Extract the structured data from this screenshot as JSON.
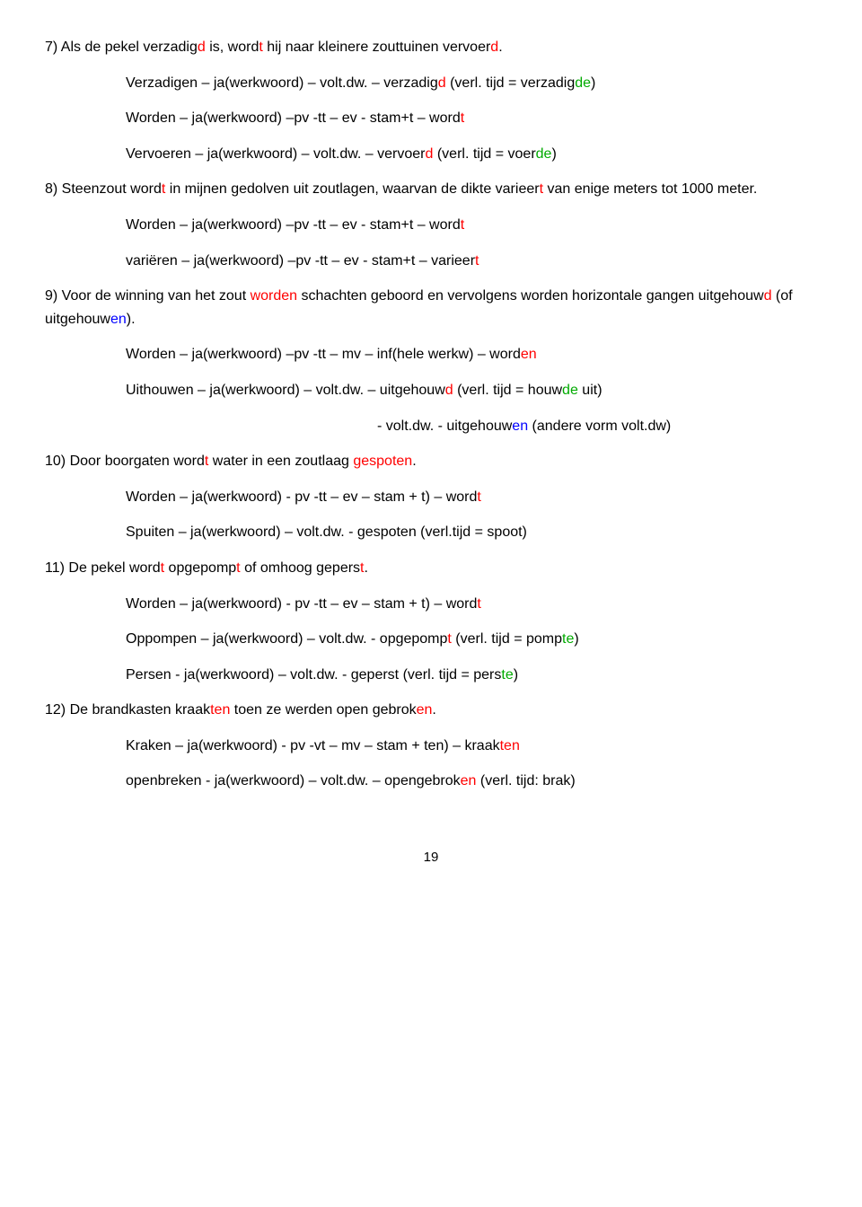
{
  "colors": {
    "red": "#ff0000",
    "green": "#00aa00",
    "blue": "#0000ff",
    "black": "#000000",
    "background": "#ffffff"
  },
  "typography": {
    "font_family": "Comic Sans MS",
    "font_size_pt": 12,
    "line_height": 1.6
  },
  "page_number": "19",
  "items": {
    "q7": {
      "sentence": [
        {
          "t": "7) Als de pekel verzadig",
          "c": "k"
        },
        {
          "t": "d",
          "c": "r"
        },
        {
          "t": " is, word",
          "c": "k"
        },
        {
          "t": "t",
          "c": "r"
        },
        {
          "t": " hij naar kleinere zouttuinen vervoer",
          "c": "k"
        },
        {
          "t": "d",
          "c": "r"
        },
        {
          "t": ".",
          "c": "k"
        }
      ],
      "rules": [
        [
          {
            "t": "Verzadigen – ja(werkwoord) – volt.dw. – verzadig",
            "c": "k"
          },
          {
            "t": "d",
            "c": "r"
          },
          {
            "t": " (verl. tijd = verzadig",
            "c": "k"
          },
          {
            "t": "de",
            "c": "g"
          },
          {
            "t": ")",
            "c": "k"
          }
        ],
        [
          {
            "t": "Worden – ja(werkwoord) –pv -tt – ev - stam+t – word",
            "c": "k"
          },
          {
            "t": "t",
            "c": "r"
          }
        ],
        [
          {
            "t": "Vervoeren – ja(werkwoord) – volt.dw. – vervoer",
            "c": "k"
          },
          {
            "t": "d",
            "c": "r"
          },
          {
            "t": " (verl. tijd = voer",
            "c": "k"
          },
          {
            "t": "de",
            "c": "g"
          },
          {
            "t": ")",
            "c": "k"
          }
        ]
      ]
    },
    "q8": {
      "sentence": [
        {
          "t": "8) Steenzout word",
          "c": "k"
        },
        {
          "t": "t",
          "c": "r"
        },
        {
          "t": " in mijnen gedolven uit zoutlagen, waarvan de dikte varieer",
          "c": "k"
        },
        {
          "t": "t",
          "c": "r"
        },
        {
          "t": " van enige meters tot 1000 meter.",
          "c": "k"
        }
      ],
      "rules": [
        [
          {
            "t": "Worden – ja(werkwoord) –pv -tt – ev - stam+t – word",
            "c": "k"
          },
          {
            "t": "t",
            "c": "r"
          }
        ],
        [
          {
            "t": "variëren – ja(werkwoord) –pv -tt – ev - stam+t – varieer",
            "c": "k"
          },
          {
            "t": "t",
            "c": "r"
          }
        ]
      ]
    },
    "q9": {
      "sentence": [
        {
          "t": "9) Voor de winning van het zout ",
          "c": "k"
        },
        {
          "t": "worden",
          "c": "r"
        },
        {
          "t": " schachten geboord en vervolgens worden horizontale gangen uitgehouw",
          "c": "k"
        },
        {
          "t": "d",
          "c": "r"
        },
        {
          "t": " (of uitgehouw",
          "c": "k"
        },
        {
          "t": "en",
          "c": "b"
        },
        {
          "t": ").",
          "c": "k"
        }
      ],
      "rules": [
        [
          {
            "t": "Worden – ja(werkwoord) –pv -tt – mv – inf(hele werkw) – word",
            "c": "k"
          },
          {
            "t": "en",
            "c": "r"
          }
        ],
        [
          {
            "t": "Uithouwen – ja(werkwoord) – volt.dw. – uitgehouw",
            "c": "k"
          },
          {
            "t": "d",
            "c": "r"
          },
          {
            "t": " (verl. tijd = houw",
            "c": "k"
          },
          {
            "t": "de",
            "c": "g"
          },
          {
            "t": " uit)",
            "c": "k"
          }
        ]
      ],
      "rule_extra": [
        {
          "t": "- volt.dw. - uitgehouw",
          "c": "k"
        },
        {
          "t": "en",
          "c": "b"
        },
        {
          "t": " (andere vorm volt.dw)",
          "c": "k"
        }
      ]
    },
    "q10": {
      "sentence": [
        {
          "t": "10) Door boorgaten word",
          "c": "k"
        },
        {
          "t": "t",
          "c": "r"
        },
        {
          "t": " water in een zoutlaag ",
          "c": "k"
        },
        {
          "t": "gespoten",
          "c": "r"
        },
        {
          "t": ".",
          "c": "k"
        }
      ],
      "rules": [
        [
          {
            "t": "Worden – ja(werkwoord) - pv -tt – ev – stam + t) – word",
            "c": "k"
          },
          {
            "t": "t",
            "c": "r"
          }
        ],
        [
          {
            "t": "Spuiten – ja(werkwoord) – volt.dw. - gespoten (verl.tijd = spoot)",
            "c": "k"
          }
        ]
      ]
    },
    "q11": {
      "sentence": [
        {
          "t": "11) De pekel word",
          "c": "k"
        },
        {
          "t": "t",
          "c": "r"
        },
        {
          "t": " opgepomp",
          "c": "k"
        },
        {
          "t": "t",
          "c": "r"
        },
        {
          "t": " of omhoog gepers",
          "c": "k"
        },
        {
          "t": "t",
          "c": "r"
        },
        {
          "t": ".",
          "c": "k"
        }
      ],
      "rules": [
        [
          {
            "t": "Worden – ja(werkwoord) - pv -tt – ev – stam + t) – word",
            "c": "k"
          },
          {
            "t": "t",
            "c": "r"
          }
        ],
        [
          {
            "t": "Oppompen – ja(werkwoord) – volt.dw. - opgepomp",
            "c": "k"
          },
          {
            "t": "t",
            "c": "r"
          },
          {
            "t": " (verl. tijd = pomp",
            "c": "k"
          },
          {
            "t": "te",
            "c": "g"
          },
          {
            "t": ")",
            "c": "k"
          }
        ],
        [
          {
            "t": "Persen - ja(werkwoord) – volt.dw. - gepers",
            "c": "k"
          },
          {
            "t": "t",
            "c": "k"
          },
          {
            "t": " (verl. tijd = pers",
            "c": "k"
          },
          {
            "t": "te",
            "c": "g"
          },
          {
            "t": ")",
            "c": "k"
          }
        ]
      ]
    },
    "q12": {
      "sentence": [
        {
          "t": "12) De brandkasten kraak",
          "c": "k"
        },
        {
          "t": "ten",
          "c": "r"
        },
        {
          "t": " toen ze werden open gebrok",
          "c": "k"
        },
        {
          "t": "en",
          "c": "r"
        },
        {
          "t": ".",
          "c": "k"
        }
      ],
      "rules": [
        [
          {
            "t": "Kraken – ja(werkwoord) - pv -vt – mv – stam + ten) – kraak",
            "c": "k"
          },
          {
            "t": "ten",
            "c": "r"
          }
        ],
        [
          {
            "t": "openbreken - ja(werkwoord) – volt.dw. – opengebrok",
            "c": "k"
          },
          {
            "t": "en",
            "c": "r"
          },
          {
            "t": " (verl. tijd: brak)",
            "c": "k"
          }
        ]
      ]
    }
  }
}
